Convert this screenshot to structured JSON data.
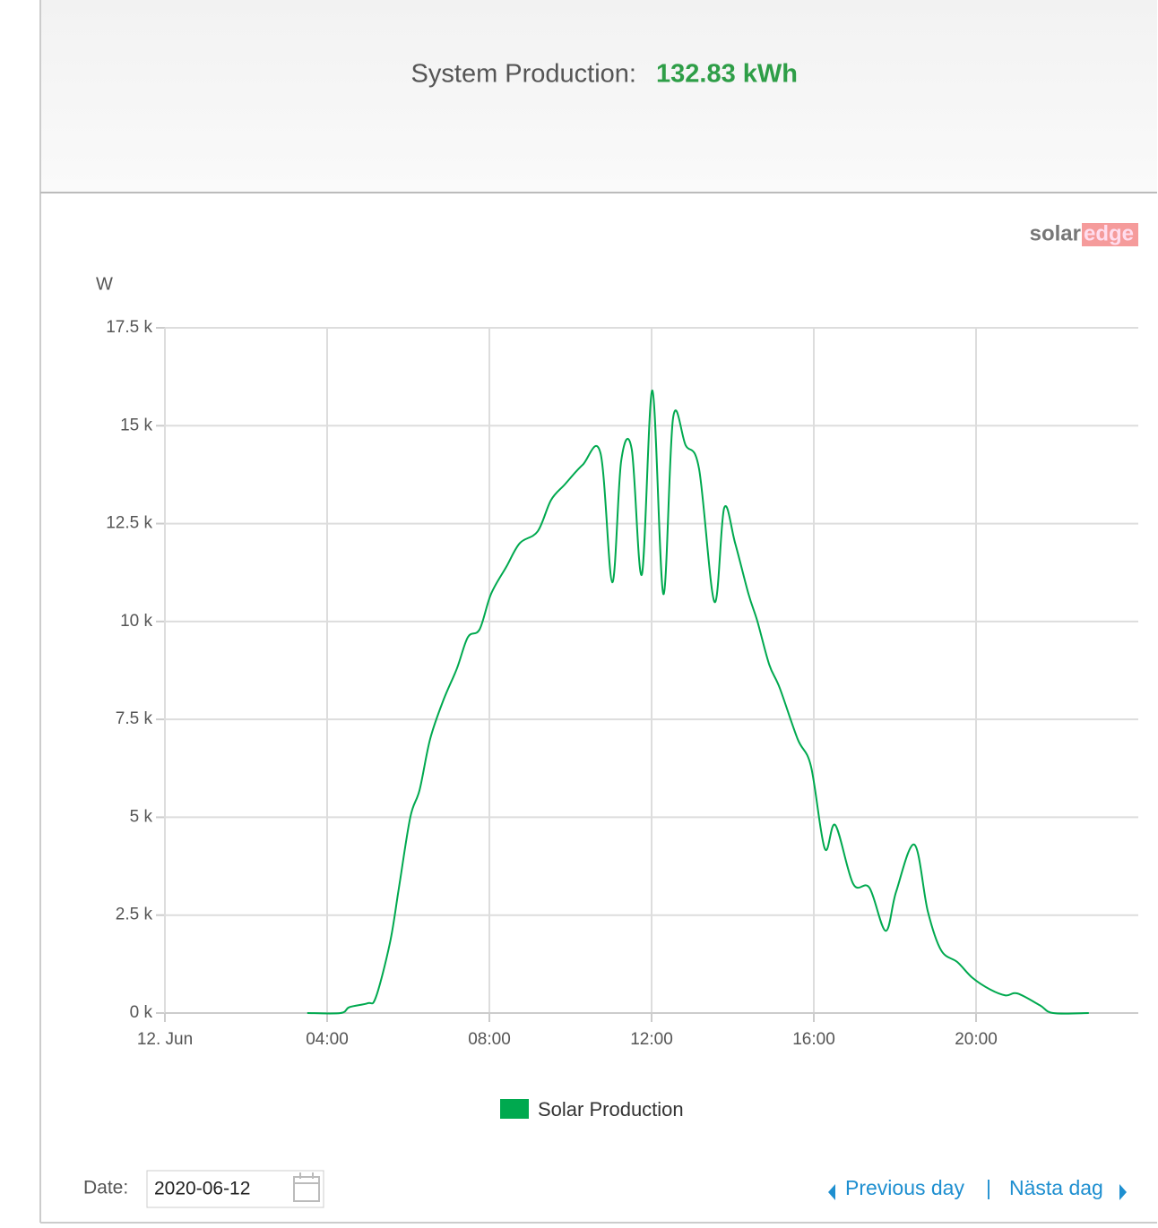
{
  "header": {
    "label": "System Production:",
    "value": "132.83 kWh"
  },
  "logo": {
    "left": "solar",
    "right": "edge"
  },
  "chart_data": {
    "type": "line",
    "y_label": "W",
    "x": [
      3.51,
      4.33,
      4.55,
      5.0,
      5.2,
      5.55,
      5.77,
      6.05,
      6.28,
      6.54,
      6.87,
      7.2,
      7.47,
      7.76,
      8.04,
      8.42,
      8.75,
      9.19,
      9.52,
      9.86,
      10.3,
      10.74,
      11.03,
      11.25,
      11.51,
      11.76,
      12.02,
      12.29,
      12.53,
      12.84,
      13.17,
      13.55,
      13.79,
      14.06,
      14.39,
      14.61,
      14.9,
      15.16,
      15.6,
      15.93,
      16.27,
      16.53,
      16.97,
      17.37,
      17.77,
      18.03,
      18.48,
      18.81,
      19.14,
      19.54,
      19.91,
      20.35,
      20.73,
      21.02,
      21.57,
      21.9,
      22.78
    ],
    "series": [
      {
        "name": "Solar Production",
        "color": "#00a94f",
        "values": [
          0,
          0,
          150,
          250,
          400,
          1800,
          3200,
          5000,
          5700,
          7000,
          8000,
          8800,
          9600,
          9800,
          10700,
          11400,
          12000,
          12300,
          13100,
          13500,
          14000,
          14300,
          11000,
          14100,
          14400,
          11200,
          15900,
          10700,
          15200,
          14500,
          13900,
          10500,
          12900,
          12000,
          10700,
          10000,
          8900,
          8300,
          7000,
          6300,
          4200,
          4800,
          3300,
          3200,
          2100,
          3100,
          4300,
          2600,
          1600,
          1300,
          900,
          600,
          450,
          500,
          200,
          0,
          0
        ]
      }
    ],
    "xlim": [
      0,
      24
    ],
    "xticks": [
      {
        "value": 0,
        "label": "12. Jun"
      },
      {
        "value": 4,
        "label": "04:00"
      },
      {
        "value": 8,
        "label": "08:00"
      },
      {
        "value": 12,
        "label": "12:00"
      },
      {
        "value": 16,
        "label": "16:00"
      },
      {
        "value": 20,
        "label": "20:00"
      }
    ],
    "ylim": [
      0,
      17500
    ],
    "yticks": [
      {
        "value": 0,
        "label": "0 k"
      },
      {
        "value": 2500,
        "label": "2.5 k"
      },
      {
        "value": 5000,
        "label": "5 k"
      },
      {
        "value": 7500,
        "label": "7.5 k"
      },
      {
        "value": 10000,
        "label": "10 k"
      },
      {
        "value": 12500,
        "label": "12.5 k"
      },
      {
        "value": 15000,
        "label": "15 k"
      },
      {
        "value": 17500,
        "label": "17.5 k"
      }
    ],
    "grid": true
  },
  "footer": {
    "date_label": "Date:",
    "date_value": "2020-06-12",
    "previous": "Previous day",
    "separator": "|",
    "next": "Nästa dag"
  }
}
